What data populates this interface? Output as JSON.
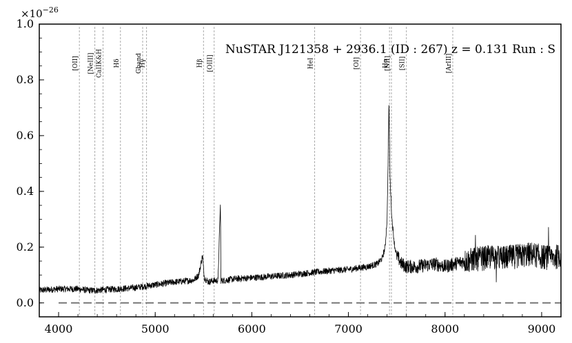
{
  "chart_data": {
    "type": "line",
    "title": "NuSTAR J121358 + 2936.1 (ID : 267)   z = 0.131   Run : S",
    "xlabel": "",
    "ylabel": "",
    "y_exponent_label": "×10",
    "y_exponent_power": "−26",
    "xlim": [
      3800,
      9200
    ],
    "ylim": [
      -0.05,
      1.0
    ],
    "xticks": [
      4000,
      5000,
      6000,
      7000,
      8000,
      9000
    ],
    "yticks": [
      0.0,
      0.2,
      0.4,
      0.6,
      0.8,
      1.0
    ],
    "ytick_labels": [
      "0.0",
      "0.2",
      "0.4",
      "0.6",
      "0.8",
      "1.0"
    ],
    "zero_line_style": "dashed-gray",
    "series": [
      {
        "color": "#000000",
        "x": [
          3800,
          4000,
          4200,
          4300,
          4400,
          4500,
          4600,
          4700,
          4800,
          4900,
          5000,
          5100,
          5200,
          5300,
          5400,
          5450,
          5490,
          5500,
          5510,
          5550,
          5600,
          5650,
          5675,
          5680,
          5700,
          5800,
          5900,
          6000,
          6200,
          6400,
          6600,
          6800,
          7000,
          7100,
          7200,
          7300,
          7350,
          7380,
          7400,
          7410,
          7420,
          7430,
          7440,
          7450,
          7480,
          7500,
          7550,
          7600,
          7700,
          7800,
          7900,
          8000,
          8100,
          8200,
          8300,
          8400,
          8500,
          8600,
          8700,
          8800,
          8900,
          9000,
          9100,
          9200
        ],
        "values": [
          0.045,
          0.05,
          0.05,
          0.045,
          0.045,
          0.048,
          0.05,
          0.052,
          0.055,
          0.06,
          0.065,
          0.07,
          0.075,
          0.078,
          0.082,
          0.1,
          0.17,
          0.12,
          0.09,
          0.075,
          0.08,
          0.08,
          0.36,
          0.08,
          0.08,
          0.085,
          0.088,
          0.09,
          0.095,
          0.1,
          0.108,
          0.115,
          0.12,
          0.125,
          0.13,
          0.14,
          0.16,
          0.2,
          0.3,
          0.5,
          0.72,
          0.45,
          0.38,
          0.3,
          0.2,
          0.17,
          0.14,
          0.13,
          0.13,
          0.135,
          0.14,
          0.13,
          0.14,
          0.15,
          0.155,
          0.16,
          0.165,
          0.16,
          0.165,
          0.17,
          0.175,
          0.165,
          0.16,
          0.17
        ]
      }
    ],
    "lines": [
      {
        "label": "[OII]",
        "x": 4215
      },
      {
        "label": "[NeIII]",
        "x": 4375
      },
      {
        "label": "CaIIK&H",
        "x": 4460
      },
      {
        "label": "Hδ",
        "x": 4640
      },
      {
        "label": "Gband",
        "x": 4870
      },
      {
        "label": "Hγ",
        "x": 4910
      },
      {
        "label": "Hβ",
        "x": 5500
      },
      {
        "label": "[OIII]",
        "x": 5610
      },
      {
        "label": "HeI",
        "x": 6650
      },
      {
        "label": "[OI]",
        "x": 7125
      },
      {
        "label": "Hα",
        "x": 7425
      },
      {
        "label": "[NII]",
        "x": 7445
      },
      {
        "label": "[SII]",
        "x": 7600
      },
      {
        "label": "[ArIII]",
        "x": 8080
      }
    ]
  }
}
